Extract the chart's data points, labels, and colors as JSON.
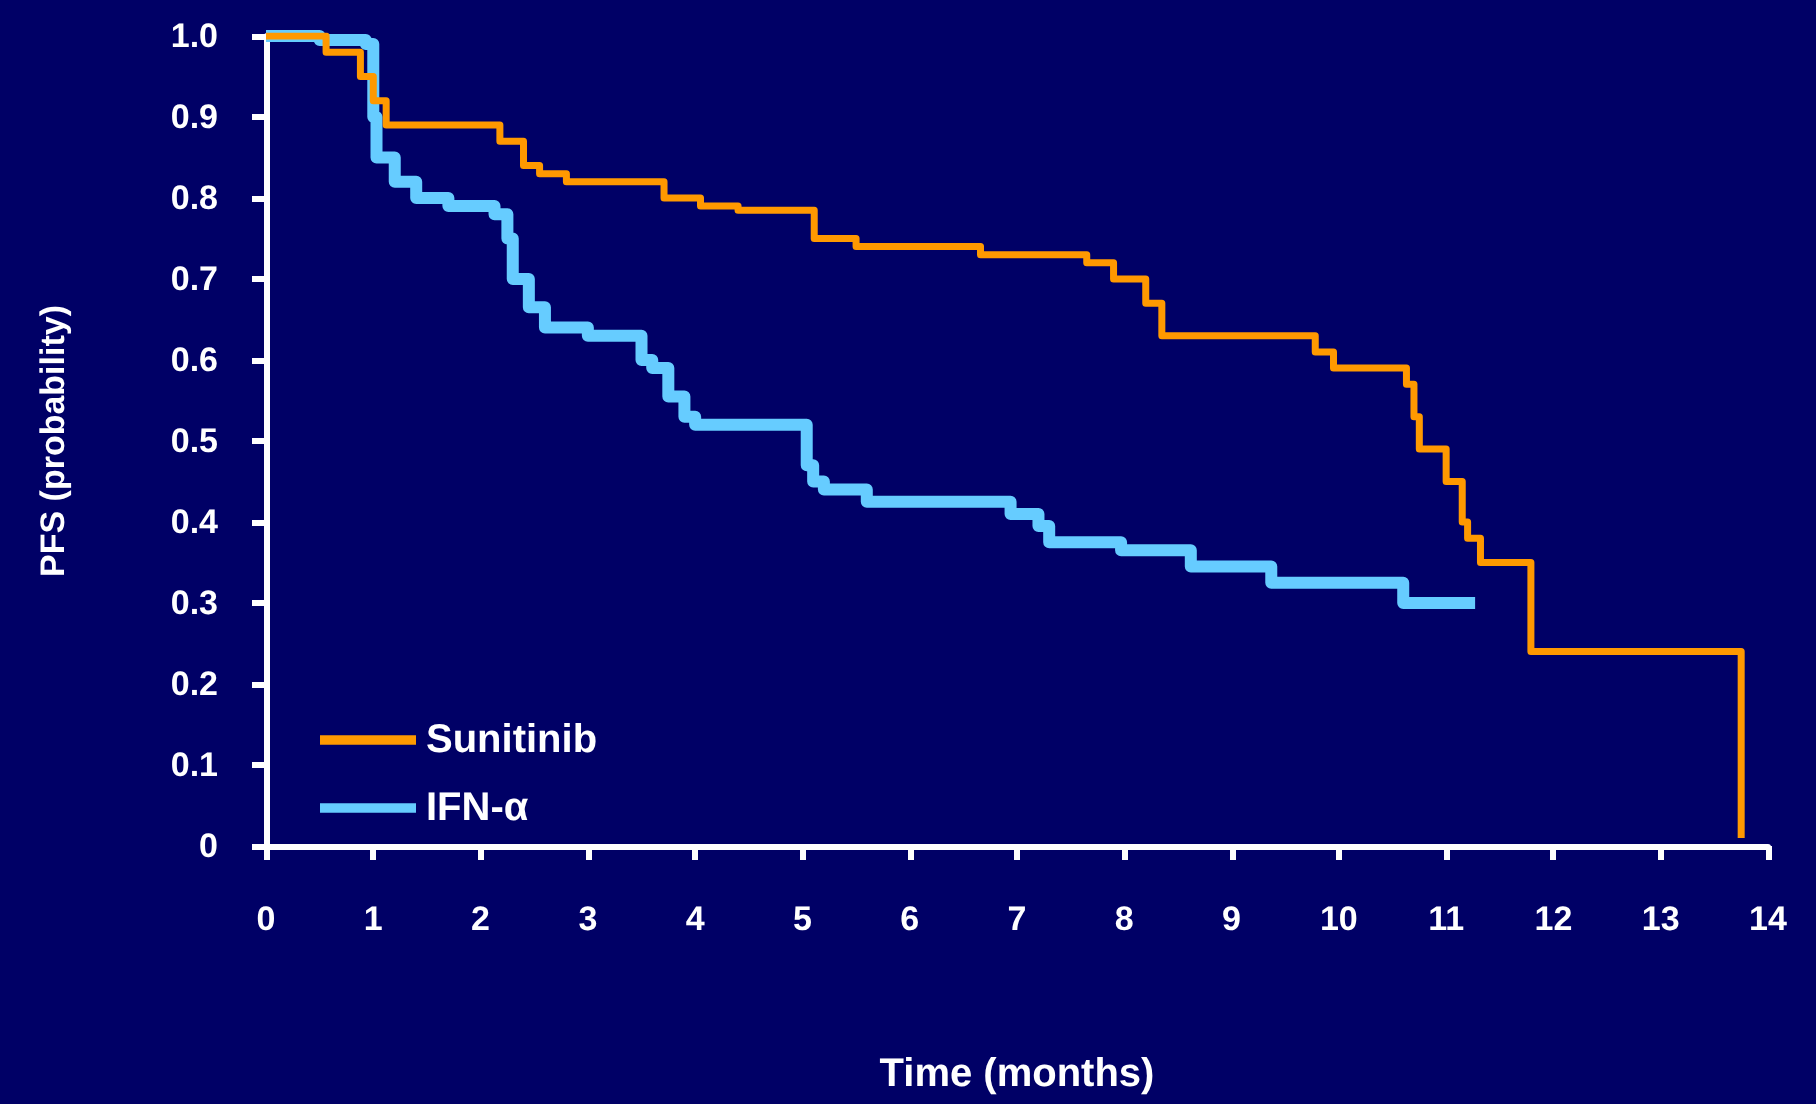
{
  "chart_data": {
    "type": "step",
    "xlabel": "Time (months)",
    "ylabel": "PFS (probability)",
    "xlim": [
      0,
      14
    ],
    "xticks": [
      0,
      1,
      2,
      3,
      4,
      5,
      6,
      7,
      8,
      9,
      10,
      11,
      12,
      13,
      14
    ],
    "ylim": [
      0,
      1
    ],
    "yticks": [
      {
        "value": 0,
        "label": "0"
      },
      {
        "value": 0.1,
        "label": "0.1"
      },
      {
        "value": 0.2,
        "label": "0.2"
      },
      {
        "value": 0.3,
        "label": "0.3"
      },
      {
        "value": 0.4,
        "label": "0.4"
      },
      {
        "value": 0.5,
        "label": "0.5"
      },
      {
        "value": 0.6,
        "label": "0.6"
      },
      {
        "value": 0.7,
        "label": "0.7"
      },
      {
        "value": 0.8,
        "label": "0.8"
      },
      {
        "value": 0.9,
        "label": "0.9"
      },
      {
        "value": 1,
        "label": "1.0"
      }
    ],
    "legend": "bottom left",
    "grid": false,
    "marker": "none",
    "line_style": "solid",
    "series": [
      {
        "name": "Sunitinib",
        "color": "#ff9900",
        "x": [
          0,
          0.56,
          0.88,
          1.0,
          1.12,
          2.18,
          2.4,
          2.55,
          2.8,
          3.71,
          4.05,
          4.4,
          5.11,
          5.5,
          6.66,
          7.65,
          7.9,
          8.2,
          8.35,
          9.78,
          9.95,
          10.63,
          10.7,
          10.75,
          11.0,
          11.15,
          11.2,
          11.32,
          11.79,
          13.75
        ],
        "values": [
          1.0,
          0.98,
          0.95,
          0.92,
          0.89,
          0.87,
          0.84,
          0.83,
          0.82,
          0.8,
          0.79,
          0.785,
          0.75,
          0.74,
          0.73,
          0.72,
          0.7,
          0.67,
          0.63,
          0.61,
          0.59,
          0.57,
          0.53,
          0.49,
          0.45,
          0.4,
          0.38,
          0.35,
          0.24,
          0.01
        ]
      },
      {
        "name": "IFN-α",
        "color": "#66ccff",
        "x": [
          0,
          0.5,
          0.93,
          1.0,
          1.03,
          1.2,
          1.4,
          1.7,
          2.13,
          2.25,
          2.3,
          2.45,
          2.6,
          3.0,
          3.5,
          3.6,
          3.75,
          3.9,
          4.0,
          5.04,
          5.1,
          5.2,
          5.6,
          6.94,
          7.2,
          7.3,
          7.97,
          8.62,
          9.37,
          10.6,
          11.27
        ],
        "values": [
          1.0,
          0.995,
          0.99,
          0.9,
          0.85,
          0.82,
          0.8,
          0.79,
          0.78,
          0.75,
          0.7,
          0.665,
          0.64,
          0.63,
          0.6,
          0.59,
          0.555,
          0.53,
          0.52,
          0.47,
          0.45,
          0.44,
          0.425,
          0.41,
          0.395,
          0.375,
          0.365,
          0.345,
          0.325,
          0.3,
          0.3
        ]
      }
    ]
  }
}
